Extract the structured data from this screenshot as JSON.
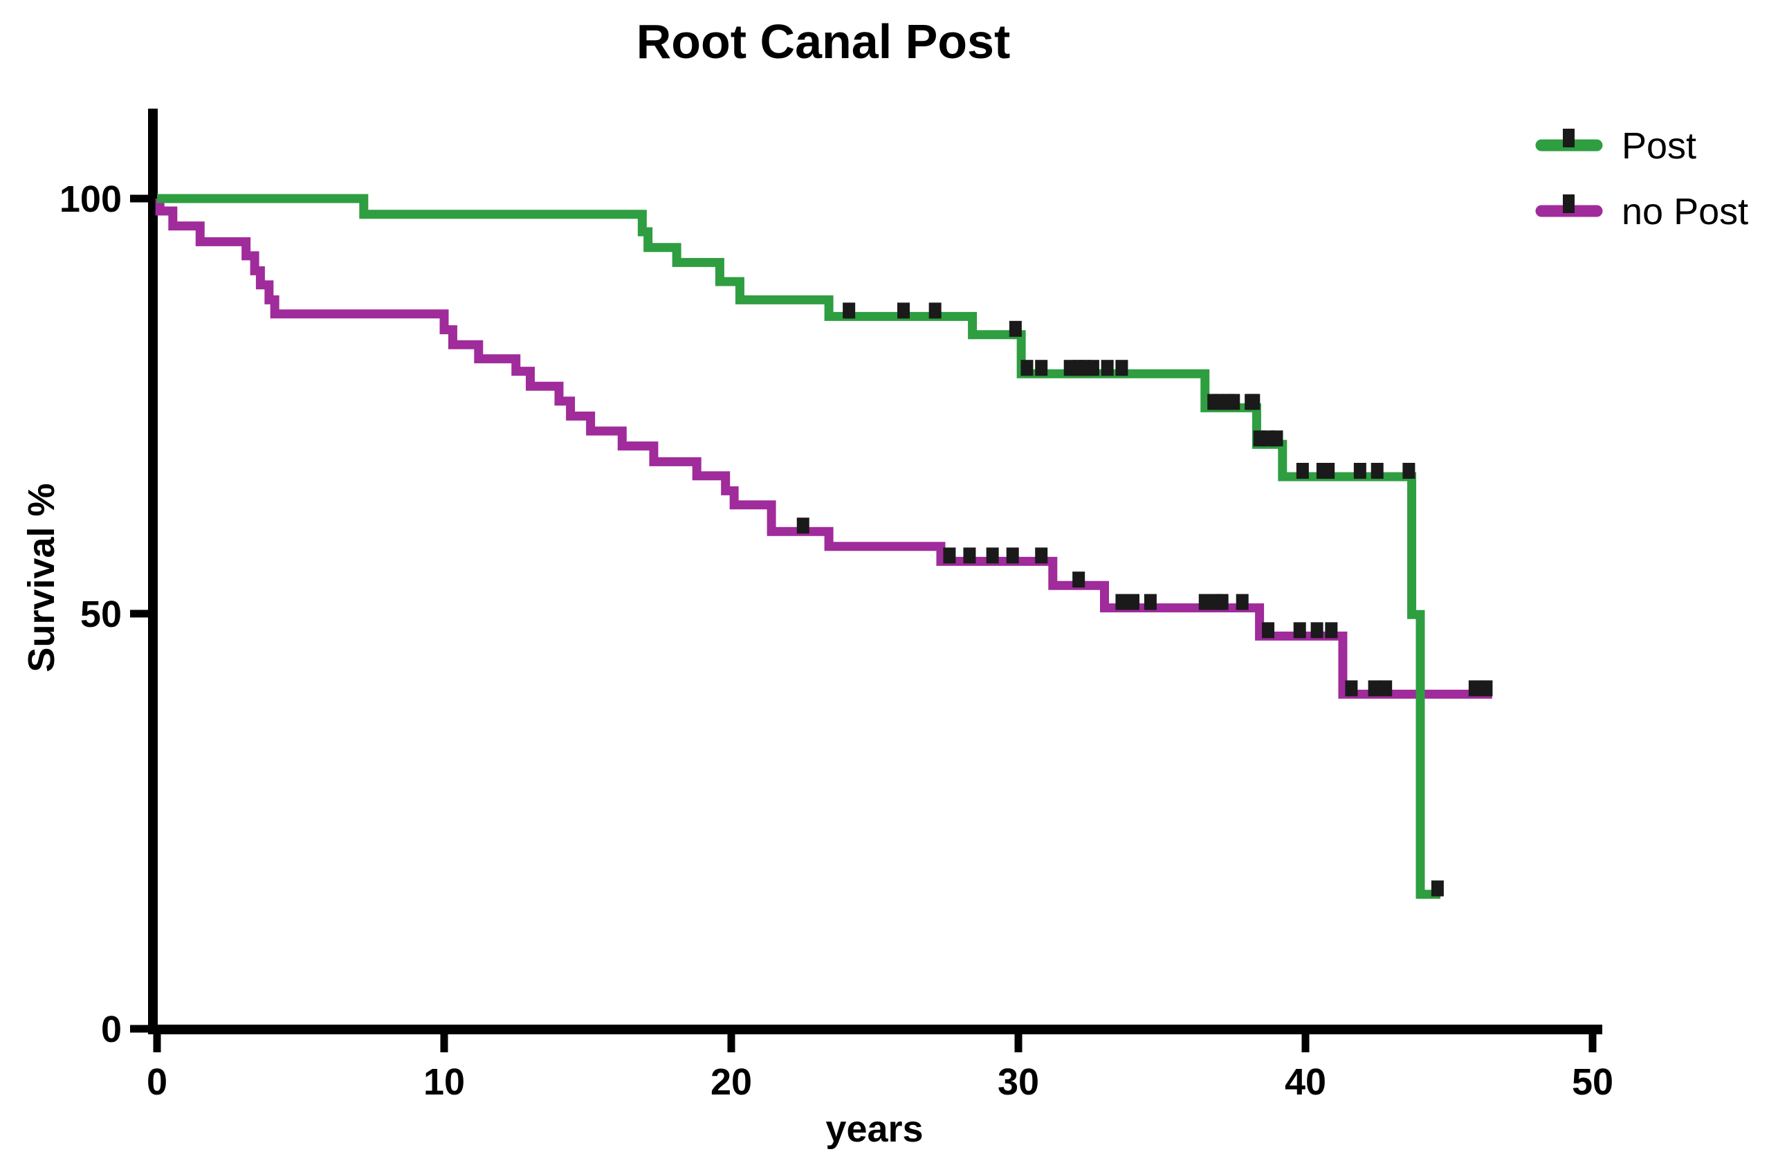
{
  "title": "Root Canal Post",
  "colors": {
    "post_green": "#2E9E41",
    "no_post_purple": "#A02B9B",
    "axis_black": "#000000",
    "censor_black": "#1A1A1A"
  },
  "legend": {
    "entries": [
      "Post",
      "no Post"
    ],
    "position": "top-right"
  },
  "chart_data": {
    "type": "line",
    "subtype": "kaplan-meier-step-survival",
    "title": "Root Canal Post",
    "xlabel": "years",
    "ylabel": "Survival %",
    "xlim": [
      0,
      50
    ],
    "ylim": [
      0,
      100
    ],
    "x_ticks": [
      0,
      10,
      20,
      30,
      40,
      50
    ],
    "y_ticks": [
      100,
      50,
      0
    ],
    "grid": false,
    "legend_position": "top-right",
    "series": [
      {
        "name": "Post",
        "color": "#2E9E41",
        "steps": [
          [
            0,
            100
          ],
          [
            7.2,
            98.1
          ],
          [
            16.9,
            96.0
          ],
          [
            17.1,
            94.1
          ],
          [
            18.1,
            92.3
          ],
          [
            19.6,
            90.0
          ],
          [
            20.3,
            87.8
          ],
          [
            23.4,
            85.8
          ],
          [
            28.4,
            83.6
          ],
          [
            30.1,
            78.9
          ],
          [
            36.5,
            74.8
          ],
          [
            38.3,
            70.4
          ],
          [
            39.2,
            66.5
          ],
          [
            43.7,
            49.9
          ],
          [
            44.0,
            16.2
          ]
        ],
        "end_x": 44.7,
        "censors": [
          [
            24.1,
            85.8
          ],
          [
            26.0,
            85.8
          ],
          [
            27.1,
            85.8
          ],
          [
            29.9,
            83.6
          ],
          [
            30.3,
            78.9
          ],
          [
            30.8,
            78.9
          ],
          [
            31.8,
            78.9
          ],
          [
            32.1,
            78.9
          ],
          [
            32.3,
            78.9
          ],
          [
            32.6,
            78.9
          ],
          [
            33.1,
            78.9
          ],
          [
            33.6,
            78.9
          ],
          [
            36.8,
            74.8
          ],
          [
            37.0,
            74.8
          ],
          [
            37.3,
            74.8
          ],
          [
            37.5,
            74.8
          ],
          [
            38.1,
            74.8
          ],
          [
            38.2,
            74.8
          ],
          [
            38.4,
            70.4
          ],
          [
            38.7,
            70.4
          ],
          [
            39.0,
            70.4
          ],
          [
            39.9,
            66.5
          ],
          [
            40.6,
            66.5
          ],
          [
            40.8,
            66.5
          ],
          [
            41.9,
            66.5
          ],
          [
            42.5,
            66.5
          ],
          [
            43.6,
            66.5
          ],
          [
            44.6,
            16.2
          ]
        ]
      },
      {
        "name": "no Post",
        "color": "#A02B9B",
        "steps": [
          [
            0,
            100
          ],
          [
            0.1,
            98.5
          ],
          [
            0.55,
            96.7
          ],
          [
            1.5,
            94.8
          ],
          [
            3.1,
            93.1
          ],
          [
            3.4,
            91.3
          ],
          [
            3.6,
            89.6
          ],
          [
            3.9,
            87.8
          ],
          [
            4.1,
            86.1
          ],
          [
            10.0,
            84.2
          ],
          [
            10.3,
            82.4
          ],
          [
            11.2,
            80.7
          ],
          [
            12.5,
            79.2
          ],
          [
            13.0,
            77.4
          ],
          [
            14.0,
            75.6
          ],
          [
            14.4,
            73.8
          ],
          [
            15.1,
            72.0
          ],
          [
            16.2,
            70.2
          ],
          [
            17.3,
            68.3
          ],
          [
            18.8,
            66.6
          ],
          [
            19.8,
            64.8
          ],
          [
            20.1,
            63.1
          ],
          [
            21.4,
            59.9
          ],
          [
            23.4,
            58.1
          ],
          [
            27.3,
            56.3
          ],
          [
            31.2,
            53.4
          ],
          [
            33.0,
            50.7
          ],
          [
            38.4,
            47.3
          ],
          [
            41.3,
            40.3
          ]
        ],
        "end_x": 46.5,
        "censors": [
          [
            22.5,
            59.9
          ],
          [
            27.6,
            56.3
          ],
          [
            28.3,
            56.3
          ],
          [
            29.1,
            56.3
          ],
          [
            29.8,
            56.3
          ],
          [
            30.8,
            56.3
          ],
          [
            32.1,
            53.4
          ],
          [
            33.6,
            50.7
          ],
          [
            34.0,
            50.7
          ],
          [
            34.6,
            50.7
          ],
          [
            36.5,
            50.7
          ],
          [
            36.9,
            50.7
          ],
          [
            37.1,
            50.7
          ],
          [
            37.8,
            50.7
          ],
          [
            38.7,
            47.3
          ],
          [
            39.8,
            47.3
          ],
          [
            40.4,
            47.3
          ],
          [
            40.9,
            47.3
          ],
          [
            41.6,
            40.3
          ],
          [
            42.4,
            40.3
          ],
          [
            42.8,
            40.3
          ],
          [
            45.9,
            40.3
          ],
          [
            46.3,
            40.3
          ]
        ]
      }
    ]
  }
}
